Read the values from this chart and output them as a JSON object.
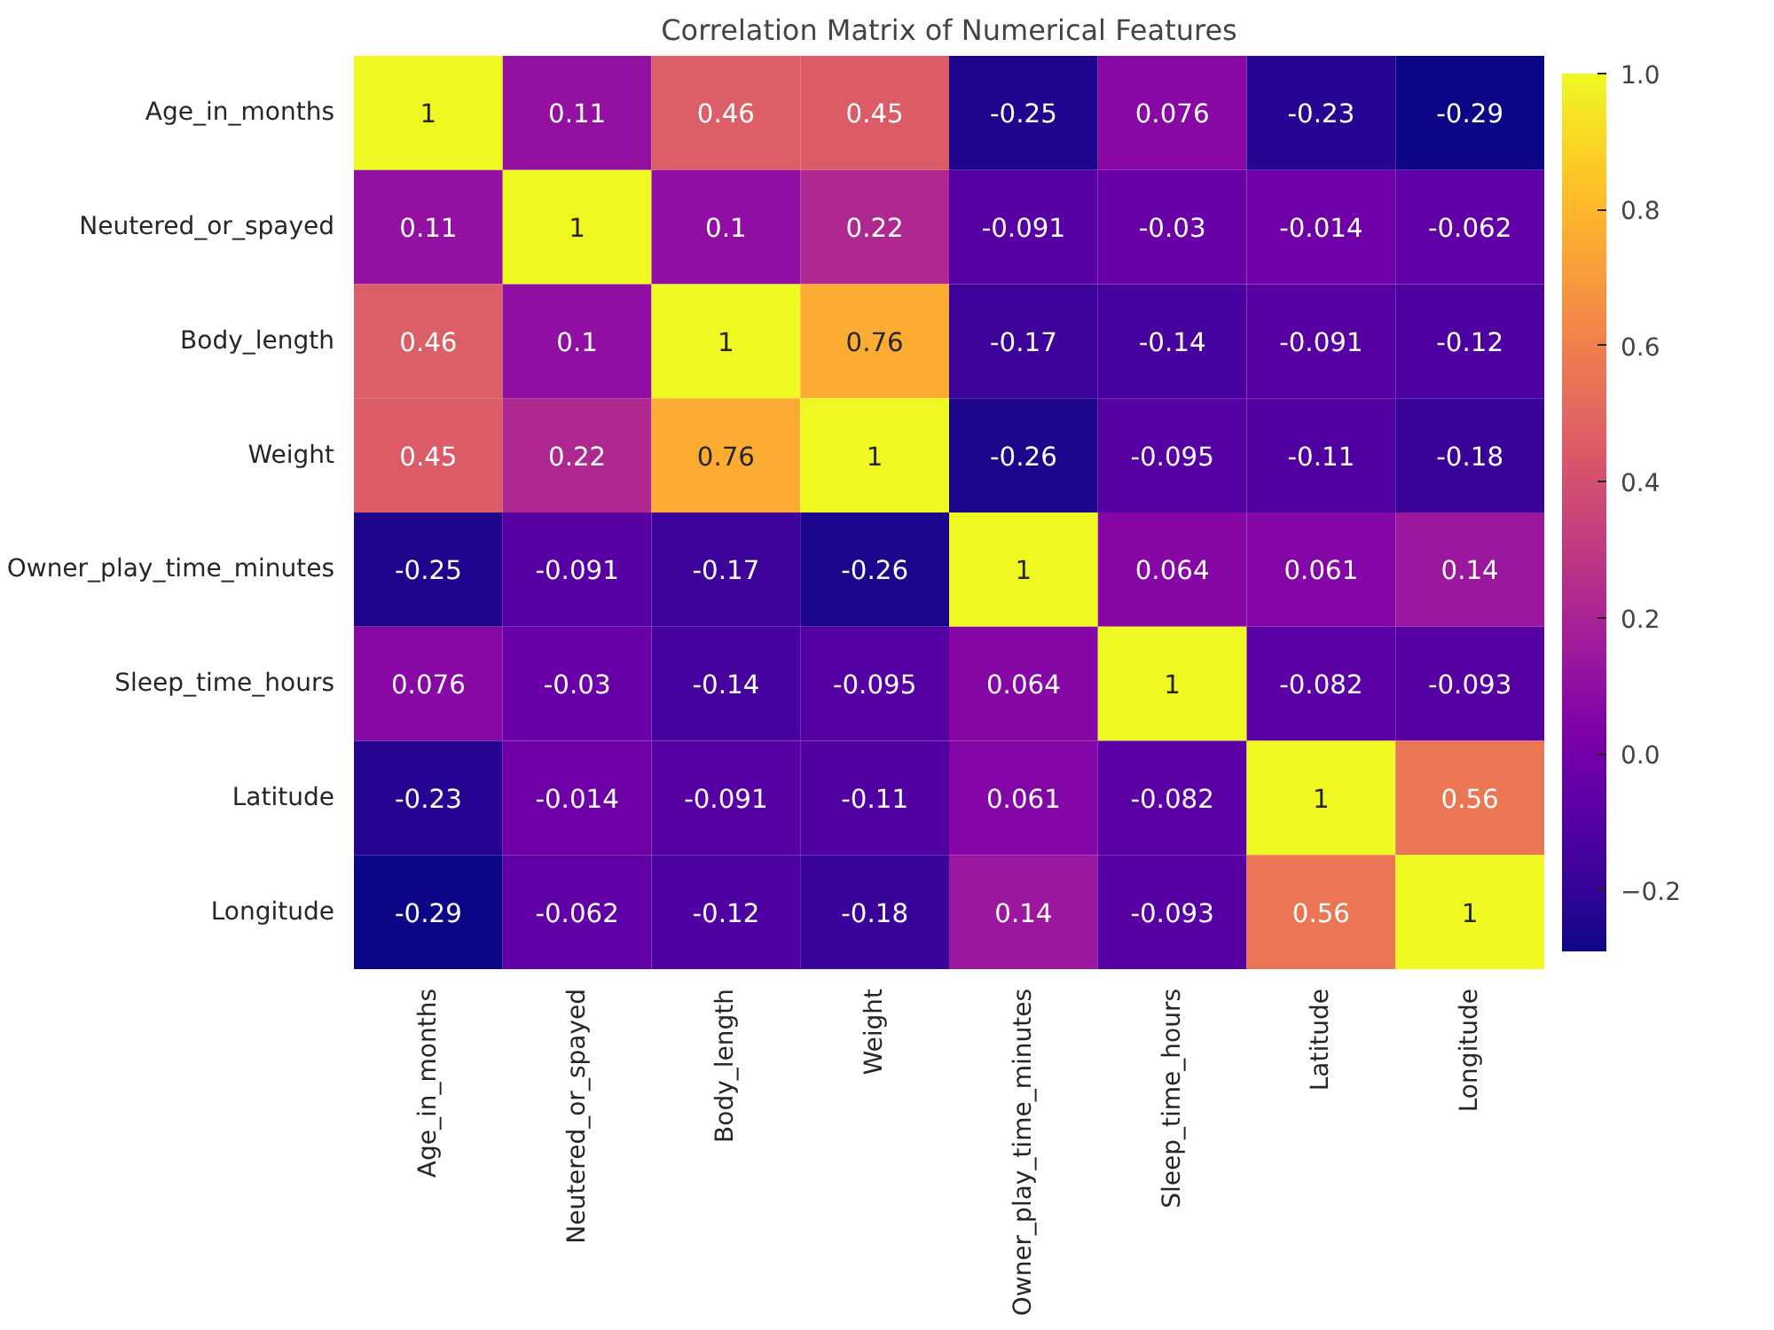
{
  "chart_data": {
    "type": "heatmap",
    "title": "Correlation Matrix of Numerical Features",
    "categories": [
      "Age_in_months",
      "Neutered_or_spayed",
      "Body_length",
      "Weight",
      "Owner_play_time_minutes",
      "Sleep_time_hours",
      "Latitude",
      "Longitude"
    ],
    "y_categories": [
      "Age_in_months",
      "Neutered_or_spayed",
      "Body_length",
      "Weight",
      "Owner_play_time_minutes",
      "Sleep_time_hours",
      "Latitude",
      "Longitude"
    ],
    "cells": [
      [
        1,
        0.11,
        0.46,
        0.45,
        -0.25,
        0.076,
        -0.23,
        -0.29
      ],
      [
        0.11,
        1,
        0.1,
        0.22,
        -0.091,
        -0.03,
        -0.014,
        -0.062
      ],
      [
        0.46,
        0.1,
        1,
        0.76,
        -0.17,
        -0.14,
        -0.091,
        -0.12
      ],
      [
        0.45,
        0.22,
        0.76,
        1,
        -0.26,
        -0.095,
        -0.11,
        -0.18
      ],
      [
        -0.25,
        -0.091,
        -0.17,
        -0.26,
        1,
        0.064,
        0.061,
        0.14
      ],
      [
        0.076,
        -0.03,
        -0.14,
        -0.095,
        0.064,
        1,
        -0.082,
        -0.093
      ],
      [
        -0.23,
        -0.014,
        -0.091,
        -0.11,
        0.061,
        -0.082,
        1,
        0.56
      ],
      [
        -0.29,
        -0.062,
        -0.12,
        -0.18,
        0.14,
        -0.093,
        0.56,
        1
      ]
    ],
    "data_labels": true,
    "clim": [
      -0.29,
      1
    ],
    "cticks": [
      {
        "value": -0.2,
        "label": "−0.2"
      },
      {
        "value": 0,
        "label": "0.0"
      },
      0.2,
      0.4,
      0.6,
      0.8,
      {
        "value": 1,
        "label": "1.0"
      }
    ]
  }
}
